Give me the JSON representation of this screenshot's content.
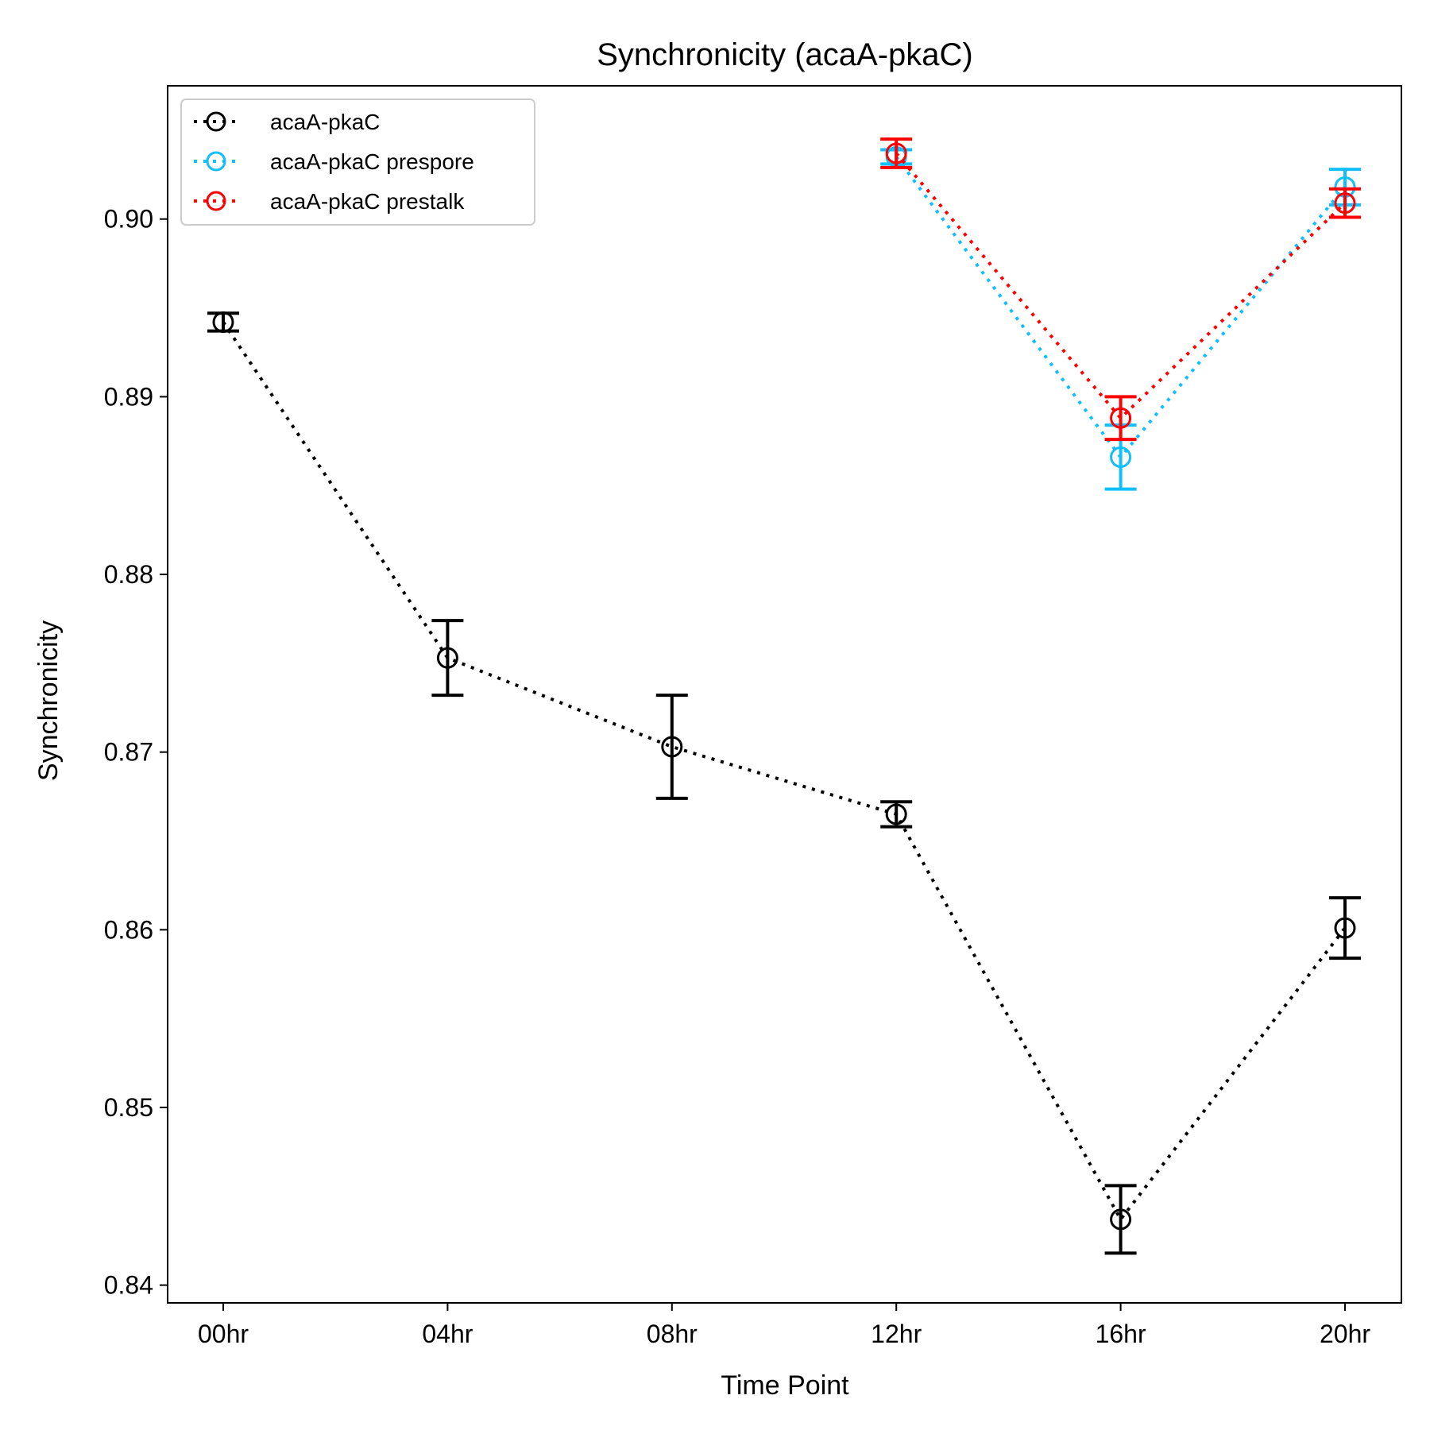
{
  "chart_data": {
    "type": "line",
    "title": "Synchronicity (acaA-pkaC)",
    "xlabel": "Time Point",
    "ylabel": "Synchronicity",
    "categories": [
      "00hr",
      "04hr",
      "08hr",
      "12hr",
      "16hr",
      "20hr"
    ],
    "ylim": [
      0.839,
      0.9075
    ],
    "yticks": [
      0.84,
      0.85,
      0.86,
      0.87,
      0.88,
      0.89,
      0.9
    ],
    "ytick_labels": [
      "0.84",
      "0.85",
      "0.86",
      "0.87",
      "0.88",
      "0.89",
      "0.90"
    ],
    "grid": false,
    "legend_position": "top-left",
    "series": [
      {
        "name": "acaA-pkaC",
        "color": "#000000",
        "x": [
          "00hr",
          "04hr",
          "08hr",
          "12hr",
          "16hr",
          "20hr"
        ],
        "values": [
          0.8942,
          0.8753,
          0.8703,
          0.8665,
          0.8437,
          0.8601
        ],
        "errors": [
          0.0005,
          0.0021,
          0.0029,
          0.0007,
          0.0019,
          0.0017
        ]
      },
      {
        "name": "acaA-pkaC prespore",
        "color": "#11bfff",
        "x": [
          "12hr",
          "16hr",
          "20hr"
        ],
        "values": [
          0.9035,
          0.8866,
          0.9018
        ],
        "errors": [
          0.0004,
          0.0018,
          0.001
        ]
      },
      {
        "name": "acaA-pkaC prestalk",
        "color": "#ff0000",
        "x": [
          "12hr",
          "16hr",
          "20hr"
        ],
        "values": [
          0.9037,
          0.8888,
          0.9009
        ],
        "errors": [
          0.0008,
          0.0012,
          0.0008
        ]
      }
    ]
  }
}
